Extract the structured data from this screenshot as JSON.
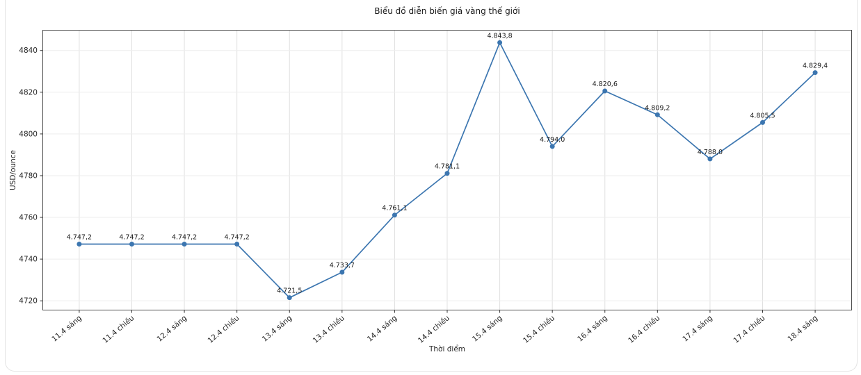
{
  "chart_data": {
    "type": "line",
    "title": "Biểu đồ diễn biến giá vàng thế giới",
    "xlabel": "Thời điểm",
    "ylabel": "USD/ounce",
    "categories": [
      "11.4 sáng",
      "11.4 chiều",
      "12.4 sáng",
      "12.4 chiều",
      "13.4 sáng",
      "13.4 chiều",
      "14.4 sáng",
      "14.4 chiều",
      "15.4 sáng",
      "15.4 chiều",
      "16.4 sáng",
      "16.4 chiều",
      "17.4 sáng",
      "17.4 chiều",
      "18.4 sáng"
    ],
    "values": [
      4747.2,
      4747.2,
      4747.2,
      4747.2,
      4721.5,
      4733.7,
      4761.1,
      4781.1,
      4843.8,
      4794.0,
      4820.6,
      4809.2,
      4788.0,
      4805.5,
      4829.4
    ],
    "point_labels": [
      "4.747,2",
      "4.747,2",
      "4.747,2",
      "4.747,2",
      "4.721,5",
      "4.733,7",
      "4.761,1",
      "4.781,1",
      "4.843,8",
      "4.794,0",
      "4.820,6",
      "4.809,2",
      "4.788,0",
      "4.805,5",
      "4.829,4"
    ],
    "yticks": [
      4720,
      4740,
      4760,
      4780,
      4800,
      4820,
      4840
    ],
    "ylim": [
      4715.4,
      4849.9
    ],
    "x_margin": 0.7,
    "grid": true,
    "legend_position": "none",
    "xtick_rotation_deg": 40,
    "colors": {
      "line": "#3c76b0",
      "marker": "#3c76b0",
      "title_text": "#1a1a1a",
      "tick_text": "#262626",
      "annotation_text": "#1a1a1a",
      "grid_horizontal": "#ededed",
      "grid_vertical": "#e0e0e0",
      "spine": "#4d4d4d",
      "tick_mark": "#333333",
      "card_border": "#e3e3e3"
    }
  }
}
